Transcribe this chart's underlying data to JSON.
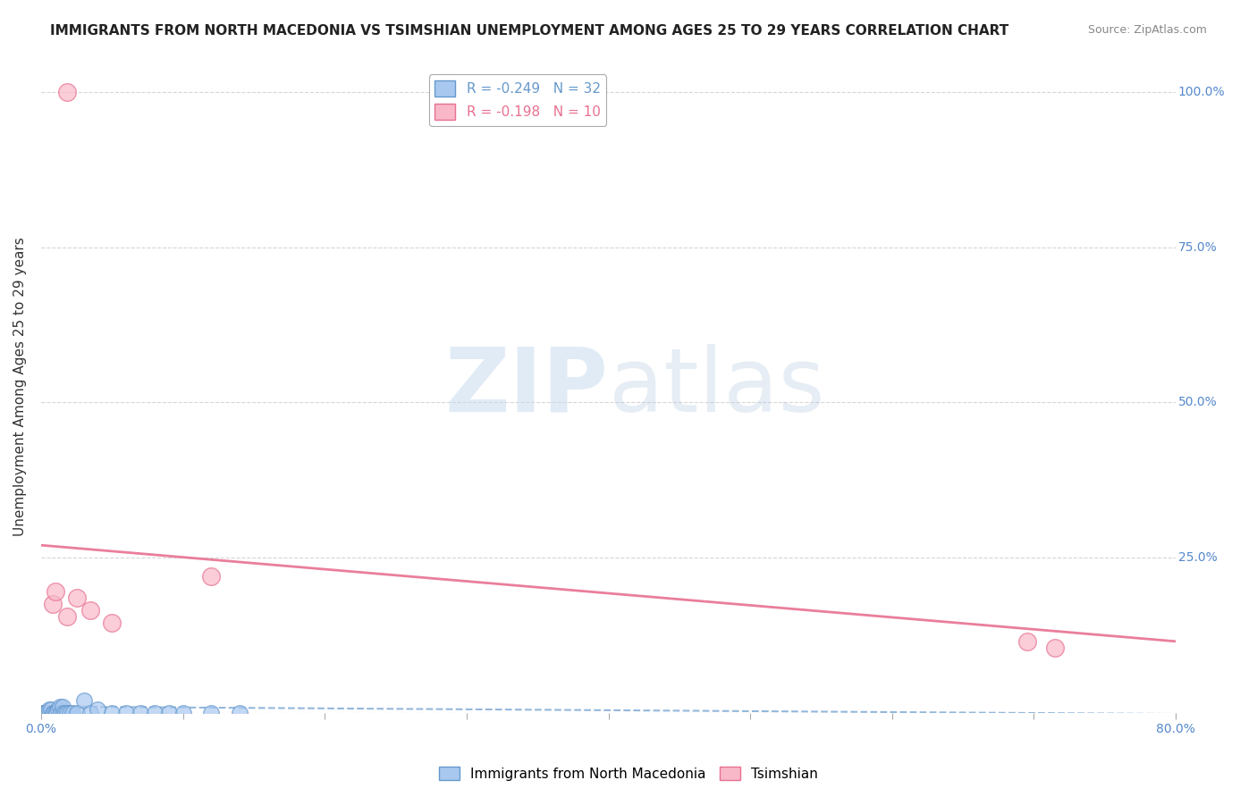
{
  "title": "IMMIGRANTS FROM NORTH MACEDONIA VS TSIMSHIAN UNEMPLOYMENT AMONG AGES 25 TO 29 YEARS CORRELATION CHART",
  "source": "Source: ZipAtlas.com",
  "ylabel": "Unemployment Among Ages 25 to 29 years",
  "xlim": [
    0.0,
    0.8
  ],
  "ylim": [
    0.0,
    1.05
  ],
  "xticks": [
    0.0,
    0.1,
    0.2,
    0.3,
    0.4,
    0.5,
    0.6,
    0.7,
    0.8
  ],
  "yticks": [
    0.0,
    0.25,
    0.5,
    0.75,
    1.0
  ],
  "blue_points": [
    [
      0.001,
      0.0
    ],
    [
      0.002,
      0.0
    ],
    [
      0.003,
      0.0
    ],
    [
      0.004,
      0.0
    ],
    [
      0.005,
      0.0
    ],
    [
      0.006,
      0.005
    ],
    [
      0.007,
      0.005
    ],
    [
      0.008,
      0.0
    ],
    [
      0.009,
      0.0
    ],
    [
      0.01,
      0.0
    ],
    [
      0.011,
      0.0
    ],
    [
      0.012,
      0.005
    ],
    [
      0.013,
      0.01
    ],
    [
      0.014,
      0.0
    ],
    [
      0.015,
      0.01
    ],
    [
      0.016,
      0.0
    ],
    [
      0.017,
      0.0
    ],
    [
      0.018,
      0.0
    ],
    [
      0.02,
      0.0
    ],
    [
      0.022,
      0.0
    ],
    [
      0.025,
      0.0
    ],
    [
      0.03,
      0.02
    ],
    [
      0.035,
      0.0
    ],
    [
      0.04,
      0.005
    ],
    [
      0.05,
      0.0
    ],
    [
      0.06,
      0.0
    ],
    [
      0.07,
      0.0
    ],
    [
      0.08,
      0.0
    ],
    [
      0.09,
      0.0
    ],
    [
      0.1,
      0.0
    ],
    [
      0.12,
      0.0
    ],
    [
      0.14,
      0.0
    ]
  ],
  "pink_points": [
    [
      0.018,
      1.0
    ],
    [
      0.008,
      0.175
    ],
    [
      0.018,
      0.155
    ],
    [
      0.01,
      0.195
    ],
    [
      0.025,
      0.185
    ],
    [
      0.035,
      0.165
    ],
    [
      0.05,
      0.145
    ],
    [
      0.695,
      0.115
    ],
    [
      0.715,
      0.105
    ],
    [
      0.12,
      0.22
    ]
  ],
  "blue_color": "#a8c8f0",
  "blue_edge_color": "#6699cc",
  "pink_color": "#f8b8c8",
  "pink_edge_color": "#e87090",
  "blue_r": -0.249,
  "blue_n": 32,
  "pink_r": -0.198,
  "pink_n": 10,
  "blue_trend_x": [
    0.0,
    0.8
  ],
  "blue_trend_y": [
    0.01,
    -0.002
  ],
  "pink_trend_x": [
    0.0,
    0.8
  ],
  "pink_trend_y": [
    0.27,
    0.115
  ],
  "watermark_zip": "ZIP",
  "watermark_atlas": "atlas",
  "background_color": "#ffffff",
  "grid_color": "#cccccc",
  "title_fontsize": 11,
  "axis_label_fontsize": 11,
  "tick_fontsize": 10,
  "legend_fontsize": 11
}
